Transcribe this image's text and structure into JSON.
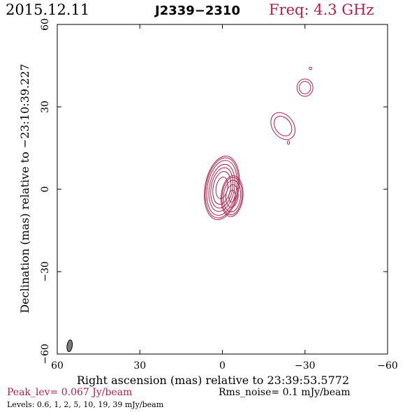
{
  "header": {
    "date": "2015.12.11",
    "source": "J2339−2310",
    "freq": "Freq: 4.3 GHz"
  },
  "chart_data": {
    "type": "contour",
    "xlabel": "Right ascension (mas) relative to 23:39:53.5772",
    "ylabel": "Declination (mas) relative to −23:10:39.227",
    "xlim": [
      60,
      -60
    ],
    "ylim": [
      -60,
      60
    ],
    "xticks": [
      60,
      30,
      0,
      -30,
      -60
    ],
    "yticks": [
      60,
      30,
      0,
      -30,
      -60
    ],
    "xtick_labels": [
      "60",
      "30",
      "0",
      "−30",
      "−60"
    ],
    "ytick_labels": [
      "60",
      "30",
      "0",
      "−30",
      "−60"
    ],
    "contour_color": "#b0204a",
    "peak_label": "Peak_lev=  0.067 Jy/beam",
    "rms_label": "Rms_noise=   0.1 mJy/beam",
    "levels_label": "Levels: 0.6,    1,    2,    5,   10,   19,   39  mJy/beam",
    "levels_mJy": [
      0.6,
      1,
      2,
      5,
      10,
      19,
      39
    ],
    "beam": {
      "x": 55.5,
      "y": -57,
      "major": 4.3,
      "minor": 1.9,
      "pa": 8
    },
    "components": [
      {
        "x": 0.2,
        "y": 0.5,
        "peak": 67,
        "sx": 2.0,
        "sy": 3.8,
        "pa": 10
      },
      {
        "x": -3.5,
        "y": -2.5,
        "peak": 13,
        "sx": 1.6,
        "sy": 3.0,
        "pa": 5
      },
      {
        "x": -22,
        "y": 23,
        "peak": 1.8,
        "sx": 2.6,
        "sy": 3.6,
        "pa": -35
      },
      {
        "x": -30,
        "y": 37,
        "peak": 1.7,
        "sx": 2.0,
        "sy": 2.2,
        "pa": 0
      },
      {
        "x": -32,
        "y": 44,
        "peak": 0.75,
        "sx": 0.7,
        "sy": 0.7,
        "pa": 0
      },
      {
        "x": -24,
        "y": 17,
        "peak": 0.75,
        "sx": 0.6,
        "sy": 1.0,
        "pa": 0
      }
    ]
  }
}
